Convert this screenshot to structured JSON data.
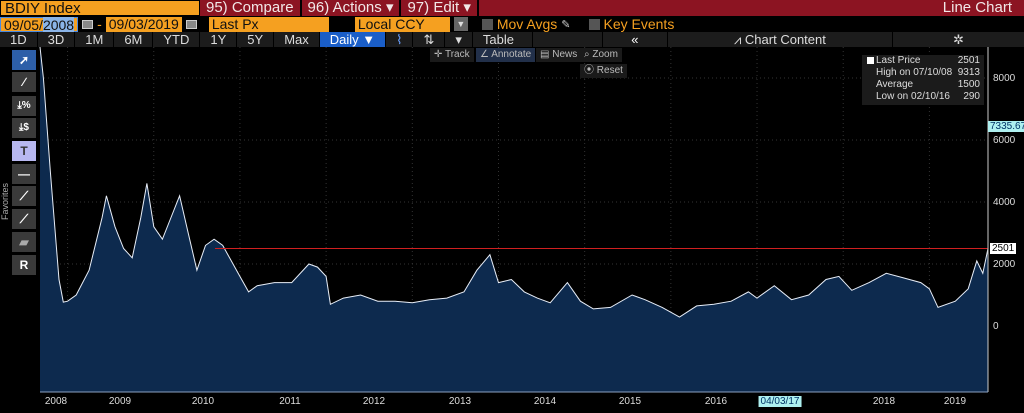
{
  "header": {
    "ticker": "BDIY Index",
    "compare": "95) Compare",
    "actions": "96) Actions",
    "actions_caret": "▾",
    "edit": "97) Edit",
    "edit_caret": "▾",
    "title": "Line Chart"
  },
  "fields": {
    "start_prefix": "09/05/",
    "start_year": "2008",
    "dash": "-",
    "end_date": "09/03/2019",
    "field": "Last Px",
    "currency": "Local CCY",
    "mov_avgs": "Mov Avgs",
    "key_events": "Key Events"
  },
  "toolbar": {
    "ranges": [
      "1D",
      "3D",
      "1M",
      "6M",
      "YTD",
      "1Y",
      "5Y",
      "Max"
    ],
    "frequency": "Daily ▼",
    "table": "Table",
    "collapse": "«",
    "chart_content": "Chart Content",
    "gear": "✲"
  },
  "controls": {
    "track": "✛ Track",
    "annotate": "∠ Annotate",
    "news": "▤ News",
    "zoom": "⌕ Zoom",
    "reset": "Reset"
  },
  "left_tools": {
    "favorites": "Favorites"
  },
  "legend": {
    "last_label": "Last Price",
    "last_value": "2501",
    "high_label": "High on 07/10/08",
    "high_value": "9313",
    "avg_label": "Average",
    "avg_value": "1500",
    "low_label": "Low on 02/10/16",
    "low_value": "290"
  },
  "axis": {
    "cursor_value": "7335.67",
    "last_tag": "2501",
    "hover_date": "04/03/17",
    "y_ticks": [
      "8000",
      "6000",
      "4000",
      "2000",
      "0"
    ],
    "years": [
      "2008",
      "2009",
      "2010",
      "2011",
      "2012",
      "2013",
      "2014",
      "2015",
      "2016",
      "2018",
      "2019"
    ]
  },
  "chart_data": {
    "type": "area",
    "title": "BDIY Index",
    "ylim": [
      -1500,
      9300
    ],
    "xlim": [
      2008.68,
      2019.68
    ],
    "reference_line": 2501,
    "x": [
      2008.68,
      2008.72,
      2008.8,
      2008.9,
      2008.95,
      2009.0,
      2009.1,
      2009.25,
      2009.4,
      2009.45,
      2009.55,
      2009.65,
      2009.75,
      2009.85,
      2009.92,
      2010.0,
      2010.1,
      2010.2,
      2010.3,
      2010.4,
      2010.5,
      2010.6,
      2010.7,
      2010.8,
      2010.9,
      2011.0,
      2011.1,
      2011.2,
      2011.4,
      2011.6,
      2011.8,
      2011.9,
      2012.0,
      2012.05,
      2012.2,
      2012.4,
      2012.6,
      2012.8,
      2013.0,
      2013.2,
      2013.4,
      2013.6,
      2013.75,
      2013.9,
      2014.0,
      2014.15,
      2014.3,
      2014.45,
      2014.6,
      2014.8,
      2014.95,
      2015.1,
      2015.3,
      2015.55,
      2015.7,
      2015.9,
      2016.1,
      2016.3,
      2016.5,
      2016.7,
      2016.9,
      2017.0,
      2017.2,
      2017.4,
      2017.6,
      2017.8,
      2017.95,
      2018.1,
      2018.3,
      2018.5,
      2018.7,
      2018.9,
      2019.0,
      2019.1,
      2019.3,
      2019.45,
      2019.55,
      2019.62,
      2019.68
    ],
    "y": [
      9300,
      8000,
      5000,
      1500,
      770,
      800,
      1000,
      1800,
      3500,
      4200,
      3200,
      2500,
      2200,
      3500,
      4600,
      3200,
      2800,
      3500,
      4200,
      3000,
      1800,
      2600,
      2800,
      2600,
      2100,
      1600,
      1100,
      1300,
      1400,
      1400,
      2000,
      1900,
      1600,
      700,
      900,
      1000,
      800,
      800,
      750,
      850,
      900,
      1100,
      1800,
      2300,
      1400,
      1500,
      1100,
      900,
      750,
      1400,
      800,
      550,
      600,
      1000,
      850,
      600,
      290,
      650,
      700,
      800,
      1100,
      900,
      1300,
      850,
      1000,
      1500,
      1600,
      1150,
      1400,
      1700,
      1550,
      1400,
      1200,
      600,
      800,
      1200,
      2100,
      1700,
      2501
    ]
  }
}
